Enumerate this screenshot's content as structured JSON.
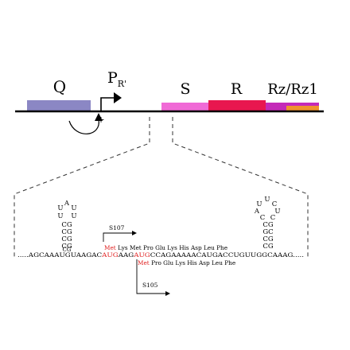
{
  "genes": {
    "q_label": "Q",
    "promoter_main": "P",
    "promoter_sub": "R'",
    "s_label": "S",
    "r_label": "R",
    "rz_label": "Rz/Rz1",
    "activation_sign": "+"
  },
  "sequence": {
    "text": ".....AGCAAAUGUAAGACAUGAAGAUGCCAGAAAAACAUGACCUGUUGGCAAAG.....",
    "pre": ".....AGCAAAUGUAAGAC",
    "start1": "AUG",
    "mid": "AAG",
    "start2": "AUG",
    "post": "CCAGAAAAACAUGACCUGUUGGCAAAG....."
  },
  "translation_s107": {
    "label": "S107",
    "first": "Met",
    "rest": [
      "Lys",
      "Met",
      "Pro",
      "Glu",
      "Lys",
      "His",
      "Asp",
      "Leu",
      "Phe"
    ]
  },
  "translation_s105": {
    "label": "S105",
    "first": "Met",
    "rest": [
      "Pro",
      "Glu",
      "Lys",
      "His",
      "Asp",
      "Leu",
      "Phe"
    ]
  },
  "hairpin_left": {
    "loop_top": "A",
    "loop_left": [
      "U",
      "U"
    ],
    "loop_right": [
      "U",
      "U"
    ],
    "stem": [
      "CG",
      "CG",
      "CG",
      "CG",
      "CG"
    ]
  },
  "hairpin_right": {
    "loop_top": "U",
    "loop_left": [
      "U",
      "A",
      "C"
    ],
    "loop_right": [
      "C",
      "U",
      "C"
    ],
    "stem": [
      "CG",
      "GC",
      "CG",
      "CG",
      "CG"
    ]
  },
  "colors": {
    "q_box": "#8b87c4",
    "s_box": "#f06ad6",
    "r_box": "#e8174f",
    "rz_box": "#c42ab8",
    "rz1_box": "#f0922e",
    "start_codon": "#e02020",
    "line": "#000000",
    "dash": "#333333"
  }
}
